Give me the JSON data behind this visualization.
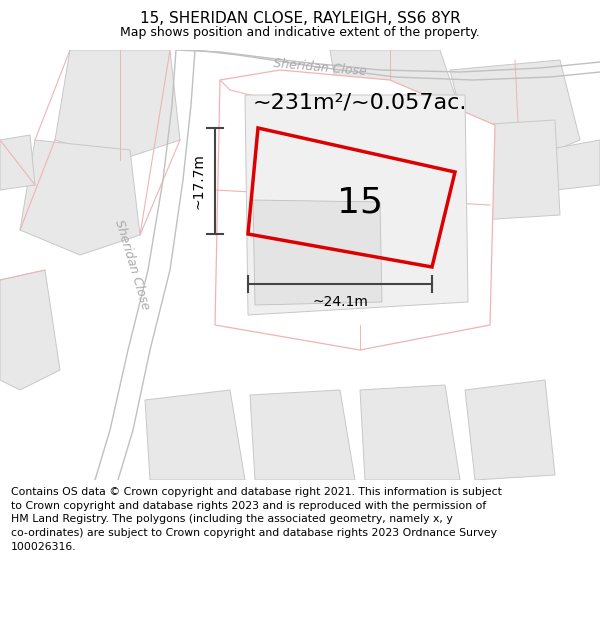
{
  "title": "15, SHERIDAN CLOSE, RAYLEIGH, SS6 8YR",
  "subtitle": "Map shows position and indicative extent of the property.",
  "area_text": "~231m²/~0.057ac.",
  "width_label": "~24.1m",
  "height_label": "~17.7m",
  "house_number": "15",
  "footer_lines": [
    "Contains OS data © Crown copyright and database right 2021. This information is subject",
    "to Crown copyright and database rights 2023 and is reproduced with the permission of",
    "HM Land Registry. The polygons (including the associated geometry, namely x, y",
    "co-ordinates) are subject to Crown copyright and database rights 2023 Ordnance Survey",
    "100026316."
  ],
  "bg_color": "#ffffff",
  "map_bg": "#ffffff",
  "plot_edge_color": "#dd0000",
  "building_fill": "#e8e8e8",
  "building_edge": "#c8c8c8",
  "road_pink": "#f0b4b4",
  "road_gray": "#c0c0c0",
  "title_fontsize": 11,
  "subtitle_fontsize": 9,
  "footer_fontsize": 7.8,
  "area_fontsize": 16,
  "number_fontsize": 26,
  "dim_fontsize": 10,
  "road_label_fontsize": 9
}
